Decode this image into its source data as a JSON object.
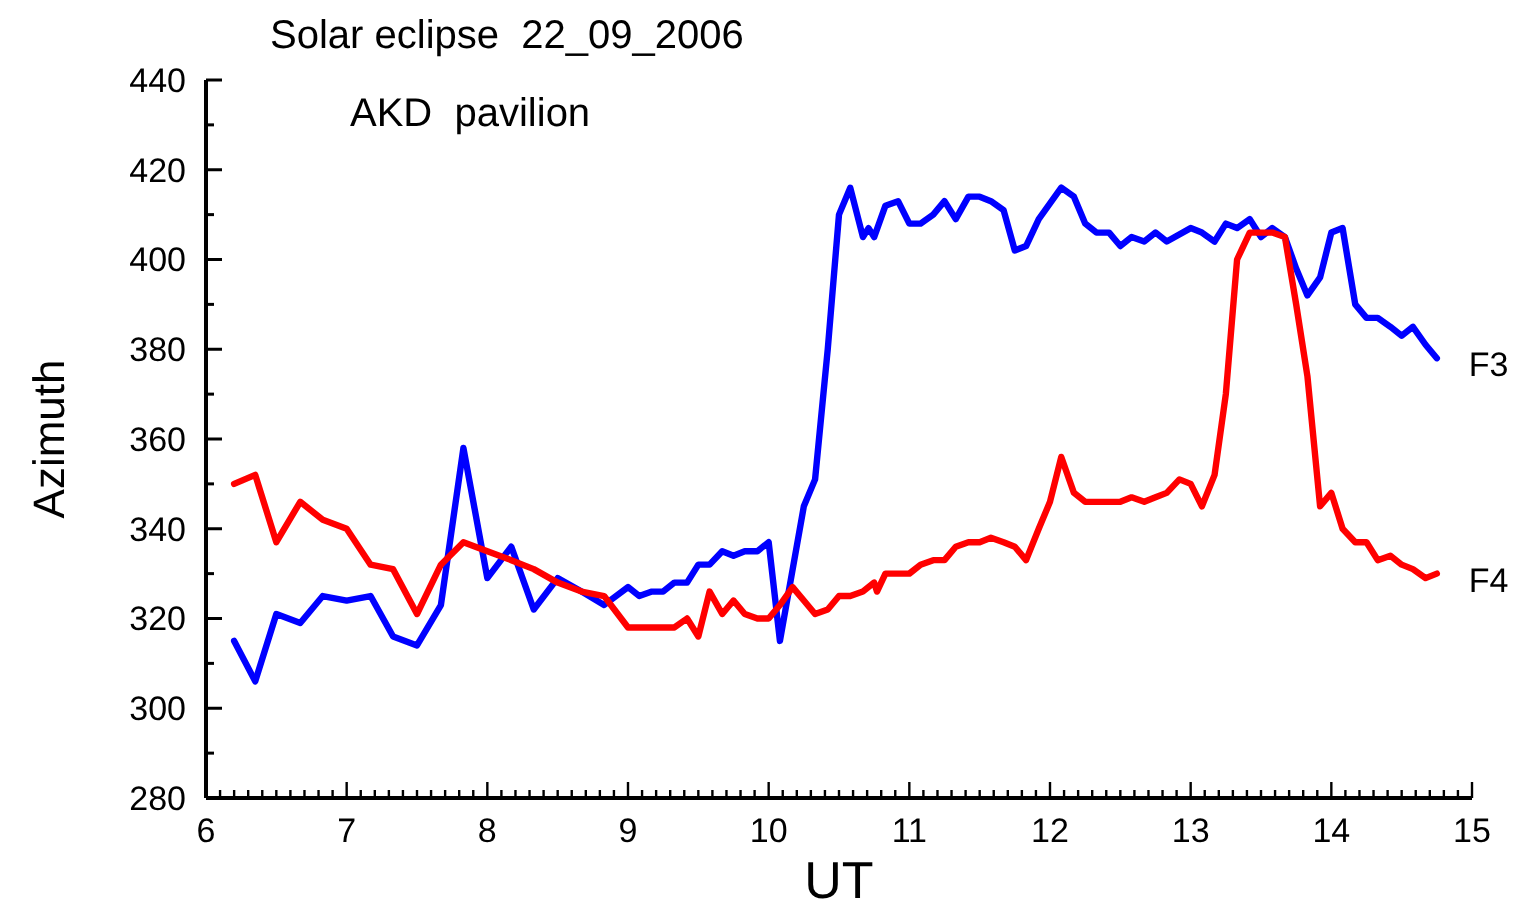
{
  "chart_data": {
    "type": "line",
    "title": "Solar eclipse  22_09_2006",
    "subtitle": "AKD  pavilion",
    "xlabel": "UT",
    "ylabel": "Azimuth",
    "xlim": [
      6,
      15
    ],
    "xticks": [
      6,
      {
        "value": 6.1,
        "label": null
      },
      {
        "value": 6.2,
        "label": null
      },
      {
        "value": 6.3,
        "label": null
      },
      {
        "value": 6.4,
        "label": null
      },
      {
        "value": 6.5,
        "label": null
      },
      {
        "value": 6.6,
        "label": null
      },
      {
        "value": 6.7,
        "label": null
      },
      {
        "value": 6.8,
        "label": null
      },
      {
        "value": 6.9,
        "label": null
      },
      7,
      {
        "value": 7.1,
        "label": null
      },
      {
        "value": 7.2,
        "label": null
      },
      {
        "value": 7.3,
        "label": null
      },
      {
        "value": 7.4,
        "label": null
      },
      {
        "value": 7.5,
        "label": null
      },
      {
        "value": 7.6,
        "label": null
      },
      {
        "value": 7.7,
        "label": null
      },
      {
        "value": 7.8,
        "label": null
      },
      {
        "value": 7.9,
        "label": null
      },
      8,
      {
        "value": 8.1,
        "label": null
      },
      {
        "value": 8.2,
        "label": null
      },
      {
        "value": 8.3,
        "label": null
      },
      {
        "value": 8.4,
        "label": null
      },
      {
        "value": 8.5,
        "label": null
      },
      {
        "value": 8.6,
        "label": null
      },
      {
        "value": 8.7,
        "label": null
      },
      {
        "value": 8.8,
        "label": null
      },
      {
        "value": 8.9,
        "label": null
      },
      9,
      {
        "value": 9.1,
        "label": null
      },
      {
        "value": 9.2,
        "label": null
      },
      {
        "value": 9.3,
        "label": null
      },
      {
        "value": 9.4,
        "label": null
      },
      {
        "value": 9.5,
        "label": null
      },
      {
        "value": 9.6,
        "label": null
      },
      {
        "value": 9.7,
        "label": null
      },
      {
        "value": 9.8,
        "label": null
      },
      {
        "value": 9.9,
        "label": null
      },
      10,
      {
        "value": 10.1,
        "label": null
      },
      {
        "value": 10.2,
        "label": null
      },
      {
        "value": 10.3,
        "label": null
      },
      {
        "value": 10.4,
        "label": null
      },
      {
        "value": 10.5,
        "label": null
      },
      {
        "value": 10.6,
        "label": null
      },
      {
        "value": 10.7,
        "label": null
      },
      {
        "value": 10.8,
        "label": null
      },
      {
        "value": 10.9,
        "label": null
      },
      11,
      {
        "value": 11.1,
        "label": null
      },
      {
        "value": 11.2,
        "label": null
      },
      {
        "value": 11.3,
        "label": null
      },
      {
        "value": 11.4,
        "label": null
      },
      {
        "value": 11.5,
        "label": null
      },
      {
        "value": 11.6,
        "label": null
      },
      {
        "value": 11.7,
        "label": null
      },
      {
        "value": 11.8,
        "label": null
      },
      {
        "value": 11.9,
        "label": null
      },
      12,
      {
        "value": 12.1,
        "label": null
      },
      {
        "value": 12.2,
        "label": null
      },
      {
        "value": 12.3,
        "label": null
      },
      {
        "value": 12.4,
        "label": null
      },
      {
        "value": 12.5,
        "label": null
      },
      {
        "value": 12.6,
        "label": null
      },
      {
        "value": 12.7,
        "label": null
      },
      {
        "value": 12.8,
        "label": null
      },
      {
        "value": 12.9,
        "label": null
      },
      13,
      {
        "value": 13.1,
        "label": null
      },
      {
        "value": 13.2,
        "label": null
      },
      {
        "value": 13.3,
        "label": null
      },
      {
        "value": 13.4,
        "label": null
      },
      {
        "value": 13.5,
        "label": null
      },
      {
        "value": 13.6,
        "label": null
      },
      {
        "value": 13.7,
        "label": null
      },
      {
        "value": 13.8,
        "label": null
      },
      {
        "value": 13.9,
        "label": null
      },
      14,
      {
        "value": 14.1,
        "label": null
      },
      {
        "value": 14.2,
        "label": null
      },
      {
        "value": 14.3,
        "label": null
      },
      {
        "value": 14.4,
        "label": null
      },
      {
        "value": 14.5,
        "label": null
      },
      {
        "value": 14.6,
        "label": null
      },
      {
        "value": 14.7,
        "label": null
      },
      {
        "value": 14.8,
        "label": null
      },
      {
        "value": 14.9,
        "label": null
      },
      15
    ],
    "ylim": [
      280,
      440
    ],
    "yticks": [
      280,
      {
        "value": 290,
        "label": null
      },
      300,
      {
        "value": 310,
        "label": null
      },
      320,
      {
        "value": 330,
        "label": null
      },
      340,
      {
        "value": 350,
        "label": null
      },
      360,
      {
        "value": 370,
        "label": null
      },
      380,
      {
        "value": 390,
        "label": null
      },
      400,
      {
        "value": 410,
        "label": null
      },
      420,
      {
        "value": 430,
        "label": null
      },
      440
    ],
    "grid": false,
    "legend": false,
    "marker": "none",
    "line_style": "solid",
    "series": [
      {
        "name": "F3",
        "color": "#0000ff",
        "x": [
          6.2,
          6.35,
          6.5,
          6.67,
          6.83,
          7,
          7.17,
          7.33,
          7.5,
          7.67,
          7.83,
          8,
          8.17,
          8.33,
          8.5,
          8.67,
          8.83,
          9,
          9.08,
          9.17,
          9.25,
          9.33,
          9.42,
          9.5,
          9.58,
          9.67,
          9.75,
          9.83,
          9.92,
          10,
          10.08,
          10.25,
          10.33,
          10.42,
          10.5,
          10.58,
          10.67,
          10.71,
          10.75,
          10.83,
          10.92,
          11,
          11.08,
          11.17,
          11.25,
          11.33,
          11.42,
          11.5,
          11.58,
          11.67,
          11.75,
          11.83,
          11.92,
          12.08,
          12.17,
          12.25,
          12.33,
          12.42,
          12.5,
          12.58,
          12.67,
          12.75,
          12.83,
          13,
          13.08,
          13.17,
          13.25,
          13.33,
          13.42,
          13.5,
          13.58,
          13.67,
          13.75,
          13.83,
          13.92,
          14,
          14.08,
          14.17,
          14.25,
          14.33,
          14.42,
          14.5,
          14.58,
          14.67,
          14.75
        ],
        "values": [
          315,
          306,
          321,
          319,
          325,
          324,
          325,
          316,
          314,
          323,
          358,
          329,
          336,
          322,
          329,
          326,
          323,
          327,
          325,
          326,
          326,
          328,
          328,
          332,
          332,
          335,
          334,
          335,
          335,
          337,
          315,
          345,
          351,
          380,
          410,
          416,
          405,
          407,
          405,
          412,
          413,
          408,
          408,
          410,
          413,
          409,
          414,
          414,
          413,
          411,
          402,
          403,
          409,
          416,
          414,
          408,
          406,
          406,
          403,
          405,
          404,
          406,
          404,
          407,
          406,
          404,
          408,
          407,
          409,
          405,
          407,
          405,
          398,
          392,
          396,
          406,
          407,
          390,
          387,
          387,
          385,
          383,
          385,
          381,
          378
        ]
      },
      {
        "name": "F4",
        "color": "#ff0000",
        "x": [
          6.2,
          6.35,
          6.5,
          6.67,
          6.83,
          7,
          7.17,
          7.33,
          7.5,
          7.67,
          7.83,
          8,
          8.17,
          8.33,
          8.5,
          8.67,
          8.83,
          9,
          9.17,
          9.33,
          9.42,
          9.5,
          9.58,
          9.67,
          9.75,
          9.83,
          9.92,
          10,
          10.08,
          10.17,
          10.25,
          10.33,
          10.42,
          10.5,
          10.58,
          10.67,
          10.75,
          10.77,
          10.83,
          11,
          11.08,
          11.17,
          11.25,
          11.33,
          11.42,
          11.5,
          11.58,
          11.67,
          11.75,
          11.83,
          11.92,
          12,
          12.08,
          12.17,
          12.25,
          12.5,
          12.58,
          12.67,
          12.75,
          12.83,
          12.92,
          13,
          13.08,
          13.17,
          13.25,
          13.33,
          13.42,
          13.5,
          13.58,
          13.67,
          13.75,
          13.83,
          13.92,
          14,
          14.08,
          14.17,
          14.25,
          14.33,
          14.42,
          14.5,
          14.58,
          14.67,
          14.75
        ],
        "values": [
          350,
          352,
          337,
          346,
          342,
          340,
          332,
          331,
          321,
          332,
          337,
          335,
          333,
          331,
          328,
          326,
          325,
          318,
          318,
          318,
          320,
          316,
          326,
          321,
          324,
          321,
          320,
          320,
          323,
          327,
          324,
          321,
          322,
          325,
          325,
          326,
          328,
          326,
          330,
          330,
          332,
          333,
          333,
          336,
          337,
          337,
          338,
          337,
          336,
          333,
          340,
          346,
          356,
          348,
          346,
          346,
          347,
          346,
          347,
          348,
          351,
          350,
          345,
          352,
          370,
          400,
          406,
          406,
          406,
          405,
          390,
          374,
          345,
          348,
          340,
          337,
          337,
          333,
          334,
          332,
          331,
          329,
          330
        ]
      }
    ]
  }
}
